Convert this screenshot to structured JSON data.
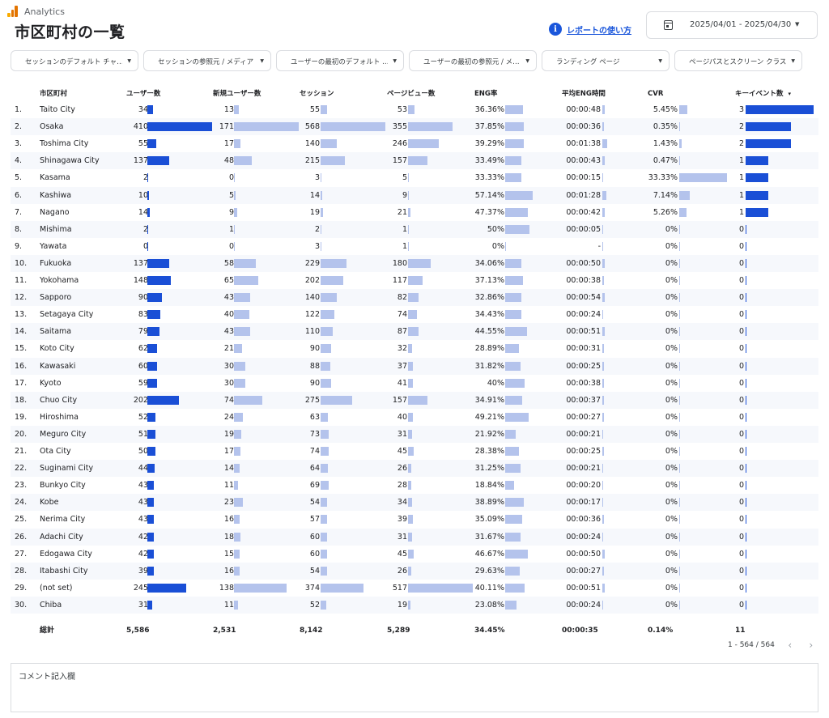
{
  "brand": {
    "name": "Analytics",
    "colors": [
      "#f9ab00",
      "#e37400",
      "#e37400"
    ]
  },
  "page": {
    "title": "市区町村の一覧"
  },
  "help": {
    "label": "レポートの使い方",
    "icon": "i"
  },
  "date_range": {
    "label": "2025/04/01 - 2025/04/30"
  },
  "filters": [
    "セッションのデフォルト チャ…",
    "セッションの参照元 / メディア",
    "ユーザーの最初のデフォルト …",
    "ユーザーの最初の参照元 / メ…",
    "ランディング ページ",
    "ページパスとスクリーン クラス"
  ],
  "columns": {
    "city": "市区町村",
    "users": "ユーザー数",
    "new_users": "新規ユーザー数",
    "sessions": "セッション",
    "pageviews": "ページビュー数",
    "eng_rate": "ENG率",
    "avg_eng": "平均ENG時間",
    "cvr": "CVR",
    "key_events": "キーイベント数",
    "sort_caret": "▾"
  },
  "rows": [
    {
      "rank": "1.",
      "city": "Taito City",
      "users": "34",
      "new_users": "13",
      "sessions": "55",
      "pageviews": "53",
      "eng_rate": "36.36%",
      "avg_eng": "00:00:48",
      "cvr": "5.45%",
      "key_events": "3"
    },
    {
      "rank": "2.",
      "city": "Osaka",
      "users": "410",
      "new_users": "171",
      "sessions": "568",
      "pageviews": "355",
      "eng_rate": "37.85%",
      "avg_eng": "00:00:36",
      "cvr": "0.35%",
      "key_events": "2"
    },
    {
      "rank": "3.",
      "city": "Toshima City",
      "users": "55",
      "new_users": "17",
      "sessions": "140",
      "pageviews": "246",
      "eng_rate": "39.29%",
      "avg_eng": "00:01:38",
      "cvr": "1.43%",
      "key_events": "2"
    },
    {
      "rank": "4.",
      "city": "Shinagawa City",
      "users": "137",
      "new_users": "48",
      "sessions": "215",
      "pageviews": "157",
      "eng_rate": "33.49%",
      "avg_eng": "00:00:43",
      "cvr": "0.47%",
      "key_events": "1"
    },
    {
      "rank": "5.",
      "city": "Kasama",
      "users": "2",
      "new_users": "0",
      "sessions": "3",
      "pageviews": "5",
      "eng_rate": "33.33%",
      "avg_eng": "00:00:15",
      "cvr": "33.33%",
      "key_events": "1"
    },
    {
      "rank": "6.",
      "city": "Kashiwa",
      "users": "10",
      "new_users": "5",
      "sessions": "14",
      "pageviews": "9",
      "eng_rate": "57.14%",
      "avg_eng": "00:01:28",
      "cvr": "7.14%",
      "key_events": "1"
    },
    {
      "rank": "7.",
      "city": "Nagano",
      "users": "14",
      "new_users": "9",
      "sessions": "19",
      "pageviews": "21",
      "eng_rate": "47.37%",
      "avg_eng": "00:00:42",
      "cvr": "5.26%",
      "key_events": "1"
    },
    {
      "rank": "8.",
      "city": "Mishima",
      "users": "2",
      "new_users": "1",
      "sessions": "2",
      "pageviews": "1",
      "eng_rate": "50%",
      "avg_eng": "00:00:05",
      "cvr": "0%",
      "key_events": "0"
    },
    {
      "rank": "9.",
      "city": "Yawata",
      "users": "0",
      "new_users": "0",
      "sessions": "3",
      "pageviews": "1",
      "eng_rate": "0%",
      "avg_eng": "-",
      "cvr": "0%",
      "key_events": "0"
    },
    {
      "rank": "10.",
      "city": "Fukuoka",
      "users": "137",
      "new_users": "58",
      "sessions": "229",
      "pageviews": "180",
      "eng_rate": "34.06%",
      "avg_eng": "00:00:50",
      "cvr": "0%",
      "key_events": "0"
    },
    {
      "rank": "11.",
      "city": "Yokohama",
      "users": "148",
      "new_users": "65",
      "sessions": "202",
      "pageviews": "117",
      "eng_rate": "37.13%",
      "avg_eng": "00:00:38",
      "cvr": "0%",
      "key_events": "0"
    },
    {
      "rank": "12.",
      "city": "Sapporo",
      "users": "90",
      "new_users": "43",
      "sessions": "140",
      "pageviews": "82",
      "eng_rate": "32.86%",
      "avg_eng": "00:00:54",
      "cvr": "0%",
      "key_events": "0"
    },
    {
      "rank": "13.",
      "city": "Setagaya City",
      "users": "83",
      "new_users": "40",
      "sessions": "122",
      "pageviews": "74",
      "eng_rate": "34.43%",
      "avg_eng": "00:00:24",
      "cvr": "0%",
      "key_events": "0"
    },
    {
      "rank": "14.",
      "city": "Saitama",
      "users": "79",
      "new_users": "43",
      "sessions": "110",
      "pageviews": "87",
      "eng_rate": "44.55%",
      "avg_eng": "00:00:51",
      "cvr": "0%",
      "key_events": "0"
    },
    {
      "rank": "15.",
      "city": "Koto City",
      "users": "62",
      "new_users": "21",
      "sessions": "90",
      "pageviews": "32",
      "eng_rate": "28.89%",
      "avg_eng": "00:00:31",
      "cvr": "0%",
      "key_events": "0"
    },
    {
      "rank": "16.",
      "city": "Kawasaki",
      "users": "60",
      "new_users": "30",
      "sessions": "88",
      "pageviews": "37",
      "eng_rate": "31.82%",
      "avg_eng": "00:00:25",
      "cvr": "0%",
      "key_events": "0"
    },
    {
      "rank": "17.",
      "city": "Kyoto",
      "users": "59",
      "new_users": "30",
      "sessions": "90",
      "pageviews": "41",
      "eng_rate": "40%",
      "avg_eng": "00:00:38",
      "cvr": "0%",
      "key_events": "0"
    },
    {
      "rank": "18.",
      "city": "Chuo City",
      "users": "202",
      "new_users": "74",
      "sessions": "275",
      "pageviews": "157",
      "eng_rate": "34.91%",
      "avg_eng": "00:00:37",
      "cvr": "0%",
      "key_events": "0"
    },
    {
      "rank": "19.",
      "city": "Hiroshima",
      "users": "52",
      "new_users": "24",
      "sessions": "63",
      "pageviews": "40",
      "eng_rate": "49.21%",
      "avg_eng": "00:00:27",
      "cvr": "0%",
      "key_events": "0"
    },
    {
      "rank": "20.",
      "city": "Meguro City",
      "users": "51",
      "new_users": "19",
      "sessions": "73",
      "pageviews": "31",
      "eng_rate": "21.92%",
      "avg_eng": "00:00:21",
      "cvr": "0%",
      "key_events": "0"
    },
    {
      "rank": "21.",
      "city": "Ota City",
      "users": "50",
      "new_users": "17",
      "sessions": "74",
      "pageviews": "45",
      "eng_rate": "28.38%",
      "avg_eng": "00:00:25",
      "cvr": "0%",
      "key_events": "0"
    },
    {
      "rank": "22.",
      "city": "Suginami City",
      "users": "44",
      "new_users": "14",
      "sessions": "64",
      "pageviews": "26",
      "eng_rate": "31.25%",
      "avg_eng": "00:00:21",
      "cvr": "0%",
      "key_events": "0"
    },
    {
      "rank": "23.",
      "city": "Bunkyo City",
      "users": "43",
      "new_users": "11",
      "sessions": "69",
      "pageviews": "28",
      "eng_rate": "18.84%",
      "avg_eng": "00:00:20",
      "cvr": "0%",
      "key_events": "0"
    },
    {
      "rank": "24.",
      "city": "Kobe",
      "users": "43",
      "new_users": "23",
      "sessions": "54",
      "pageviews": "34",
      "eng_rate": "38.89%",
      "avg_eng": "00:00:17",
      "cvr": "0%",
      "key_events": "0"
    },
    {
      "rank": "25.",
      "city": "Nerima City",
      "users": "43",
      "new_users": "16",
      "sessions": "57",
      "pageviews": "39",
      "eng_rate": "35.09%",
      "avg_eng": "00:00:36",
      "cvr": "0%",
      "key_events": "0"
    },
    {
      "rank": "26.",
      "city": "Adachi City",
      "users": "42",
      "new_users": "18",
      "sessions": "60",
      "pageviews": "31",
      "eng_rate": "31.67%",
      "avg_eng": "00:00:24",
      "cvr": "0%",
      "key_events": "0"
    },
    {
      "rank": "27.",
      "city": "Edogawa City",
      "users": "42",
      "new_users": "15",
      "sessions": "60",
      "pageviews": "45",
      "eng_rate": "46.67%",
      "avg_eng": "00:00:50",
      "cvr": "0%",
      "key_events": "0"
    },
    {
      "rank": "28.",
      "city": "Itabashi City",
      "users": "39",
      "new_users": "16",
      "sessions": "54",
      "pageviews": "26",
      "eng_rate": "29.63%",
      "avg_eng": "00:00:27",
      "cvr": "0%",
      "key_events": "0"
    },
    {
      "rank": "29.",
      "city": "(not set)",
      "users": "245",
      "new_users": "138",
      "sessions": "374",
      "pageviews": "517",
      "eng_rate": "40.11%",
      "avg_eng": "00:00:51",
      "cvr": "0%",
      "key_events": "0"
    },
    {
      "rank": "30.",
      "city": "Chiba",
      "users": "31",
      "new_users": "11",
      "sessions": "52",
      "pageviews": "19",
      "eng_rate": "23.08%",
      "avg_eng": "00:00:24",
      "cvr": "0%",
      "key_events": "0"
    }
  ],
  "bar_colors": {
    "dark": "#1a4fd6",
    "light": "#b4c3ec",
    "alt_row": "#f6f8fc"
  },
  "totals": {
    "label": "総計",
    "users": "5,586",
    "new_users": "2,531",
    "sessions": "8,142",
    "pageviews": "5,289",
    "eng_rate": "34.45%",
    "avg_eng": "00:00:35",
    "cvr": "0.14%",
    "key_events": "11"
  },
  "pager": {
    "text": "1 - 564 / 564",
    "prev": "‹",
    "next": "›"
  },
  "comment": {
    "label": "コメント記入欄"
  }
}
